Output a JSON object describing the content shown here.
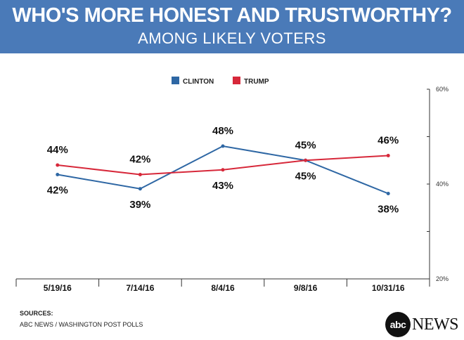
{
  "header": {
    "title": "WHO'S MORE HONEST AND TRUSTWORTHY?",
    "subtitle": "AMONG LIKELY VOTERS"
  },
  "footer": {
    "sources_label": "SOURCES:",
    "sources_text": "ABC NEWS / WASHINGTON POST POLLS",
    "logo_mark": "abc",
    "logo_word": "NEWS"
  },
  "colors": {
    "header_bg": "#4a7ab8",
    "clinton": "#2e67a4",
    "trump": "#d7283a"
  },
  "chart_data": {
    "type": "line",
    "title": "WHO'S MORE HONEST AND TRUSTWORTHY?",
    "subtitle": "AMONG LIKELY VOTERS",
    "categories": [
      "5/19/16",
      "7/14/16",
      "8/4/16",
      "9/8/16",
      "10/31/16"
    ],
    "series": [
      {
        "name": "CLINTON",
        "color": "#2e67a4",
        "values": [
          42,
          39,
          48,
          45,
          38
        ],
        "labels": [
          "42%",
          "39%",
          "48%",
          "45%",
          "38%"
        ],
        "label_pos": [
          "below",
          "below",
          "above",
          "below",
          "below"
        ]
      },
      {
        "name": "TRUMP",
        "color": "#d7283a",
        "values": [
          44,
          42,
          43,
          45,
          46
        ],
        "labels": [
          "44%",
          "42%",
          "43%",
          "45%",
          "46%"
        ],
        "label_pos": [
          "above",
          "above",
          "below",
          "above",
          "above"
        ]
      }
    ],
    "ylim": [
      20,
      60
    ],
    "yticks": [
      20,
      30,
      40,
      50,
      60
    ],
    "ytick_labels": [
      "20%",
      "",
      "40%",
      "",
      "60%"
    ],
    "legend_position": "top-center",
    "xlabel": "",
    "ylabel": ""
  }
}
